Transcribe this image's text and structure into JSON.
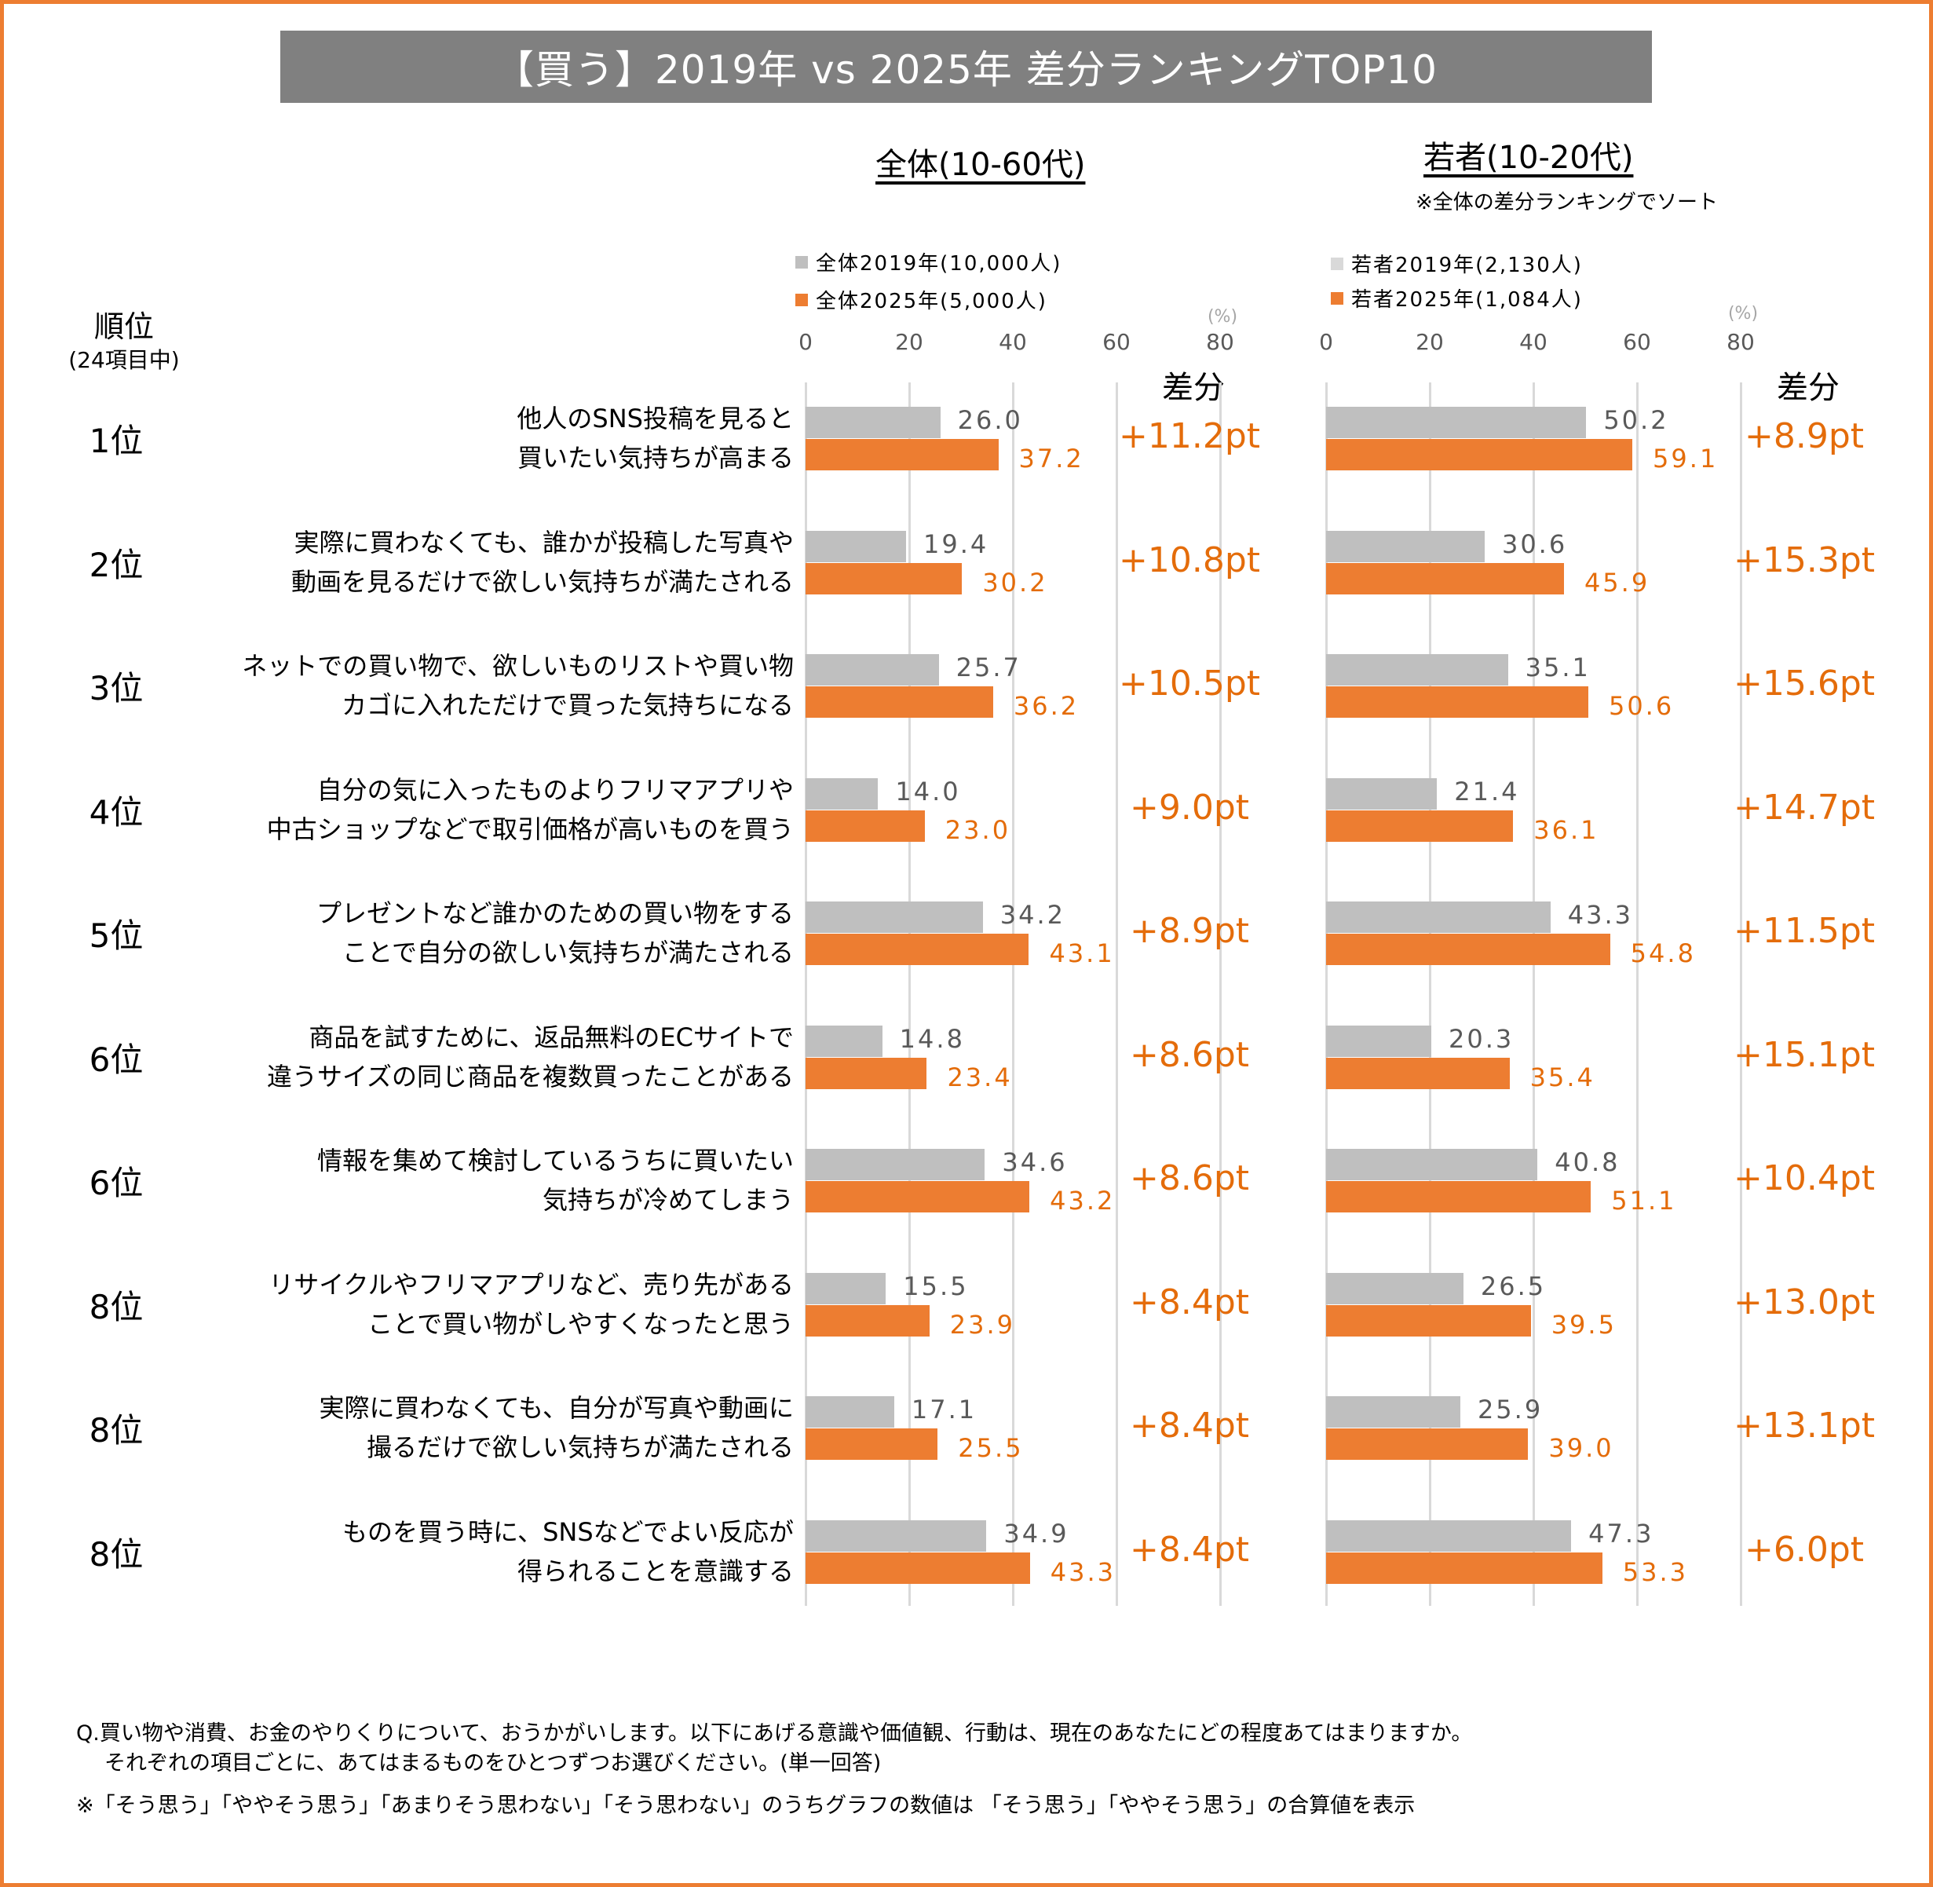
{
  "title": "【買う】2019年 vs 2025年 差分ランキングTOP10",
  "rank_header": {
    "title": "順位",
    "subtitle": "(24項目中)"
  },
  "colors": {
    "accent": "#ED7D31",
    "series_2019": "#BFBFBF",
    "series_2025": "#ED7D31",
    "diff_text": "#E46C0A",
    "title_bg": "#808080"
  },
  "panels": [
    {
      "title": "全体(10-60代)",
      "note": "",
      "legend": [
        "全体2019年(10,000人)",
        "全体2025年(5,000人)"
      ],
      "diff_header": "差分",
      "unit": "(%)"
    },
    {
      "title": "若者(10-20代)",
      "note": "※全体の差分ランキングでソート",
      "legend": [
        "若者2019年(2,130人)",
        "若者2025年(1,084人)"
      ],
      "diff_header": "差分",
      "unit": "(%)"
    }
  ],
  "chart_data": [
    {
      "type": "bar",
      "orientation": "horizontal",
      "title": "全体(10-60代)",
      "xlim": [
        0,
        80
      ],
      "xticks": [
        "0",
        "20",
        "40",
        "60",
        "80"
      ],
      "xlabel": "(%)",
      "grid": true,
      "legend_position": "top-left",
      "categories": [
        "他人のSNS投稿を見ると\n買いたい気持ちが高まる",
        "実際に買わなくても、誰かが投稿した写真や\n動画を見るだけで欲しい気持ちが満たされる",
        "ネットでの買い物で、欲しいものリストや買い物\nカゴに入れただけで買った気持ちになる",
        "自分の気に入ったものよりフリマアプリや\n中古ショップなどで取引価格が高いものを買う",
        "プレゼントなど誰かのための買い物をする\nことで自分の欲しい気持ちが満たされる",
        "商品を試すために、返品無料のECサイトで\n違うサイズの同じ商品を複数買ったことがある",
        "情報を集めて検討しているうちに買いたい\n気持ちが冷めてしまう",
        "リサイクルやフリマアプリなど、売り先がある\nことで買い物がしやすくなったと思う",
        "実際に買わなくても、自分が写真や動画に\n撮るだけで欲しい気持ちが満たされる",
        "ものを買う時に、SNSなどでよい反応が\n得られることを意識する"
      ],
      "series": [
        {
          "name": "全体2019年(10,000人)",
          "values": [
            26.0,
            19.4,
            25.7,
            14.0,
            34.2,
            14.8,
            34.6,
            15.5,
            17.1,
            34.9
          ]
        },
        {
          "name": "全体2025年(5,000人)",
          "values": [
            37.2,
            30.2,
            36.2,
            23.0,
            43.1,
            23.4,
            43.2,
            23.9,
            25.5,
            43.3
          ]
        }
      ],
      "diff": [
        "+11.2pt",
        "+10.8pt",
        "+10.5pt",
        "+9.0pt",
        "+8.9pt",
        "+8.6pt",
        "+8.6pt",
        "+8.4pt",
        "+8.4pt",
        "+8.4pt"
      ]
    },
    {
      "type": "bar",
      "orientation": "horizontal",
      "title": "若者(10-20代)",
      "xlim": [
        0,
        80
      ],
      "xticks": [
        "0",
        "20",
        "40",
        "60",
        "80"
      ],
      "xlabel": "(%)",
      "grid": true,
      "legend_position": "top-left",
      "series": [
        {
          "name": "若者2019年(2,130人)",
          "values": [
            50.2,
            30.6,
            35.1,
            21.4,
            43.3,
            20.3,
            40.8,
            26.5,
            25.9,
            47.3
          ]
        },
        {
          "name": "若者2025年(1,084人)",
          "values": [
            59.1,
            45.9,
            50.6,
            36.1,
            54.8,
            35.4,
            51.1,
            39.5,
            39.0,
            53.3
          ]
        }
      ],
      "diff": [
        "+8.9pt",
        "+15.3pt",
        "+15.6pt",
        "+14.7pt",
        "+11.5pt",
        "+15.1pt",
        "+10.4pt",
        "+13.0pt",
        "+13.1pt",
        "+6.0pt"
      ]
    }
  ],
  "ranks": [
    "1位",
    "2位",
    "3位",
    "4位",
    "5位",
    "6位",
    "6位",
    "8位",
    "8位",
    "8位"
  ],
  "footer": {
    "question_line1": "Q.買い物や消費、お金のやりくりについて、おうかがいします。以下にあげる意識や価値観、行動は、現在のあなたにどの程度あてはまりますか。",
    "question_line2": "それぞれの項目ごとに、あてはまるものをひとつずつお選びください。(単一回答)",
    "note": "※「そう思う」「ややそう思う」「あまりそう思わない」「そう思わない」のうちグラフの数値は 「そう思う」「ややそう思う」の合算値を表示"
  }
}
